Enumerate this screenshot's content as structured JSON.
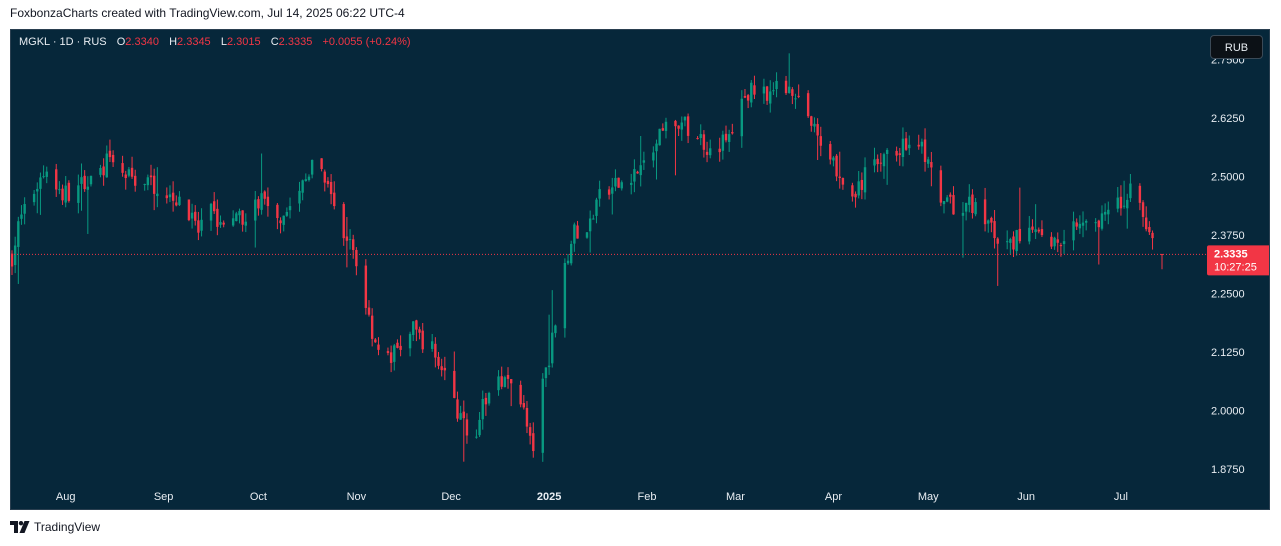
{
  "header": {
    "attribution": "FoxbonzaCharts created with TradingView.com, Jul 14, 2025 06:22 UTC-4"
  },
  "legend": {
    "symbol": "MGKL · 1D · RUS",
    "open_label": "O",
    "open": "2.3340",
    "high_label": "H",
    "high": "2.3345",
    "low_label": "L",
    "low": "2.3015",
    "close_label": "C",
    "close": "2.3335",
    "change": "+0.0055 (+0.24%)"
  },
  "currency_button": "RUB",
  "price_tag": {
    "price": "2.3335",
    "countdown": "10:27:25"
  },
  "footer": {
    "brand": "TradingView"
  },
  "colors": {
    "up": "#089981",
    "down": "#f23645",
    "background": "#06273a",
    "text": "#e8edf2"
  },
  "chart_data": {
    "type": "candlestick",
    "title": "",
    "xlabel": "",
    "ylabel": "",
    "ylim": [
      1.83,
      2.785
    ],
    "y_ticks": [
      "2.7500",
      "2.6250",
      "2.5000",
      "2.3750",
      "2.2500",
      "2.1250",
      "2.0000",
      "1.8750"
    ],
    "x_ticks": [
      "Aug",
      "Sep",
      "Oct",
      "Nov",
      "Dec",
      "2025",
      "Feb",
      "Mar",
      "Apr",
      "May",
      "Jun",
      "Jul"
    ],
    "last_price": 2.3335,
    "grid": false,
    "anchors": [
      [
        "2024-07-15",
        2.33
      ],
      [
        "2024-07-18",
        2.42
      ],
      [
        "2024-07-22",
        2.47
      ],
      [
        "2024-07-26",
        2.52
      ],
      [
        "2024-07-31",
        2.46
      ],
      [
        "2024-08-06",
        2.48
      ],
      [
        "2024-08-10",
        2.5
      ],
      [
        "2024-08-14",
        2.53
      ],
      [
        "2024-08-20",
        2.5
      ],
      [
        "2024-08-26",
        2.49
      ],
      [
        "2024-08-31",
        2.48
      ],
      [
        "2024-09-06",
        2.45
      ],
      [
        "2024-09-12",
        2.38
      ],
      [
        "2024-09-16",
        2.42
      ],
      [
        "2024-09-22",
        2.39
      ],
      [
        "2024-09-27",
        2.42
      ],
      [
        "2024-10-02",
        2.45
      ],
      [
        "2024-10-08",
        2.42
      ],
      [
        "2024-10-13",
        2.45
      ],
      [
        "2024-10-18",
        2.52
      ],
      [
        "2024-10-22",
        2.49
      ],
      [
        "2024-10-26",
        2.4
      ],
      [
        "2024-10-31",
        2.34
      ],
      [
        "2024-11-03",
        2.26
      ],
      [
        "2024-11-06",
        2.17
      ],
      [
        "2024-11-10",
        2.1
      ],
      [
        "2024-11-14",
        2.13
      ],
      [
        "2024-11-19",
        2.17
      ],
      [
        "2024-11-24",
        2.14
      ],
      [
        "2024-11-29",
        2.08
      ],
      [
        "2024-12-03",
        2.0
      ],
      [
        "2024-12-07",
        1.93
      ],
      [
        "2024-12-12",
        2.02
      ],
      [
        "2024-12-16",
        2.08
      ],
      [
        "2024-12-20",
        2.05
      ],
      [
        "2024-12-23",
        2.03
      ],
      [
        "2024-12-26",
        1.93
      ],
      [
        "2024-12-28",
        1.92
      ],
      [
        "2024-12-30",
        2.05
      ],
      [
        "2025-01-02",
        2.15
      ],
      [
        "2025-01-05",
        2.3
      ],
      [
        "2025-01-09",
        2.38
      ],
      [
        "2025-01-12",
        2.35
      ],
      [
        "2025-01-16",
        2.45
      ],
      [
        "2025-01-21",
        2.47
      ],
      [
        "2025-01-26",
        2.5
      ],
      [
        "2025-01-31",
        2.52
      ],
      [
        "2025-02-04",
        2.57
      ],
      [
        "2025-02-09",
        2.62
      ],
      [
        "2025-02-15",
        2.6
      ],
      [
        "2025-02-21",
        2.56
      ],
      [
        "2025-02-27",
        2.58
      ],
      [
        "2025-03-04",
        2.67
      ],
      [
        "2025-03-08",
        2.69
      ],
      [
        "2025-03-13",
        2.68
      ],
      [
        "2025-03-18",
        2.7
      ],
      [
        "2025-03-22",
        2.66
      ],
      [
        "2025-03-27",
        2.58
      ],
      [
        "2025-04-01",
        2.54
      ],
      [
        "2025-04-05",
        2.45
      ],
      [
        "2025-04-09",
        2.47
      ],
      [
        "2025-04-14",
        2.54
      ],
      [
        "2025-04-18",
        2.54
      ],
      [
        "2025-04-24",
        2.57
      ],
      [
        "2025-04-28",
        2.58
      ],
      [
        "2025-05-01",
        2.52
      ],
      [
        "2025-05-05",
        2.44
      ],
      [
        "2025-05-10",
        2.43
      ],
      [
        "2025-05-15",
        2.44
      ],
      [
        "2025-05-20",
        2.4
      ],
      [
        "2025-05-25",
        2.34
      ],
      [
        "2025-05-30",
        2.37
      ],
      [
        "2025-06-04",
        2.38
      ],
      [
        "2025-06-10",
        2.36
      ],
      [
        "2025-06-15",
        2.39
      ],
      [
        "2025-06-20",
        2.42
      ],
      [
        "2025-06-26",
        2.41
      ],
      [
        "2025-07-01",
        2.44
      ],
      [
        "2025-07-04",
        2.47
      ],
      [
        "2025-07-07",
        2.45
      ],
      [
        "2025-07-10",
        2.36
      ],
      [
        "2025-07-14",
        2.3335
      ]
    ]
  }
}
